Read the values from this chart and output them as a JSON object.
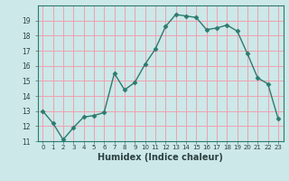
{
  "x": [
    0,
    1,
    2,
    3,
    4,
    5,
    6,
    7,
    8,
    9,
    10,
    11,
    12,
    13,
    14,
    15,
    16,
    17,
    18,
    19,
    20,
    21,
    22,
    23
  ],
  "y": [
    13.0,
    12.2,
    11.1,
    11.9,
    12.6,
    12.7,
    12.9,
    15.5,
    14.4,
    14.9,
    16.1,
    17.1,
    18.6,
    19.4,
    19.3,
    19.2,
    18.4,
    18.5,
    18.7,
    18.3,
    16.8,
    15.2,
    14.8,
    12.5
  ],
  "line_color": "#2d7a6e",
  "marker": "D",
  "marker_size": 2.5,
  "bg_color": "#cce8e8",
  "grid_color": "#f0a0b0",
  "xlabel": "Humidex (Indice chaleur)",
  "ylim": [
    11,
    20
  ],
  "xlim": [
    -0.5,
    23.5
  ],
  "yticks": [
    11,
    12,
    13,
    14,
    15,
    16,
    17,
    18,
    19
  ],
  "xticks": [
    0,
    1,
    2,
    3,
    4,
    5,
    6,
    7,
    8,
    9,
    10,
    11,
    12,
    13,
    14,
    15,
    16,
    17,
    18,
    19,
    20,
    21,
    22,
    23
  ],
  "xtick_labels": [
    "0",
    "1",
    "2",
    "3",
    "4",
    "5",
    "6",
    "7",
    "8",
    "9",
    "10",
    "11",
    "12",
    "13",
    "14",
    "15",
    "16",
    "17",
    "18",
    "19",
    "20",
    "21",
    "22",
    "23"
  ],
  "linewidth": 1.0,
  "tick_color": "#2d7a6e",
  "label_color": "#2d4040"
}
